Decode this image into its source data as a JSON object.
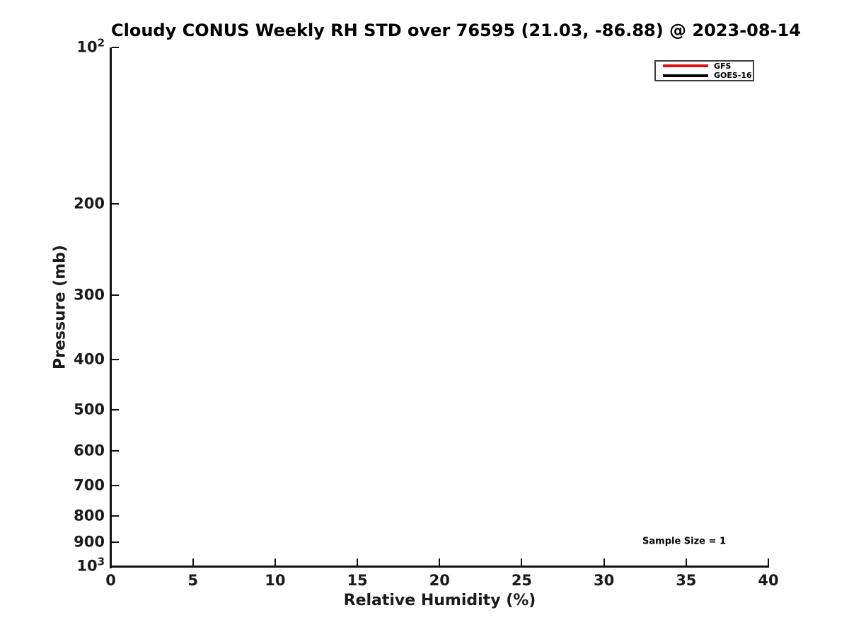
{
  "chart_data": {
    "type": "line",
    "title": "Cloudy CONUS Weekly RH STD over 76595 (21.03, -86.88) @ 2023-08-14",
    "xlabel": "Relative Humidity (%)",
    "ylabel": "Pressure (mb)",
    "xlim": [
      0,
      40
    ],
    "xscale": "linear",
    "yscale": "log",
    "ylim": [
      100,
      1000
    ],
    "y_axis_inverted_note": "pressure increases downward",
    "grid": false,
    "legend_position": "upper right",
    "xticks": [
      {
        "value": 0,
        "label": "0"
      },
      {
        "value": 5,
        "label": "5"
      },
      {
        "value": 10,
        "label": "10"
      },
      {
        "value": 15,
        "label": "15"
      },
      {
        "value": 20,
        "label": "20"
      },
      {
        "value": 25,
        "label": "25"
      },
      {
        "value": 30,
        "label": "30"
      },
      {
        "value": 35,
        "label": "35"
      },
      {
        "value": 40,
        "label": "40"
      }
    ],
    "yticks": [
      {
        "value": 100,
        "label_base": "10",
        "label_exp": "2"
      },
      {
        "value": 200,
        "label": "200"
      },
      {
        "value": 300,
        "label": "300"
      },
      {
        "value": 400,
        "label": "400"
      },
      {
        "value": 500,
        "label": "500"
      },
      {
        "value": 600,
        "label": "600"
      },
      {
        "value": 700,
        "label": "700"
      },
      {
        "value": 800,
        "label": "800"
      },
      {
        "value": 900,
        "label": "900"
      },
      {
        "value": 1000,
        "label_base": "10",
        "label_exp": "3"
      }
    ],
    "series": [
      {
        "name": "GFS",
        "color": "#dd1111",
        "x": [],
        "y": []
      },
      {
        "name": "GOES-16",
        "color": "#000000",
        "x": [],
        "y": []
      }
    ],
    "annotations": [
      {
        "text": "Sample Size = 1"
      }
    ],
    "colors": {
      "axis": "#111111",
      "text": "#000000",
      "legend_border": "#3d3d3d",
      "gfs_red": "#dd1111",
      "goes16_black": "#000000"
    }
  }
}
